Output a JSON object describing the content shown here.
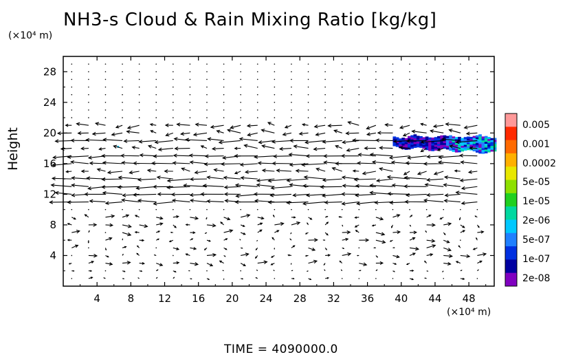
{
  "chart_data": {
    "type": "heatmap",
    "title": "NH3-s Cloud & Rain Mixing Ratio [kg/kg]",
    "ylabel": "Height",
    "xlabel": "",
    "x_unit": "(×10⁴ m)",
    "y_unit": "(×10⁴ m)",
    "xlim": [
      0,
      51
    ],
    "ylim": [
      0,
      30
    ],
    "x_ticks": [
      4,
      8,
      12,
      16,
      20,
      24,
      28,
      32,
      36,
      40,
      44,
      48
    ],
    "y_ticks": [
      4,
      8,
      12,
      16,
      20,
      24,
      28
    ],
    "colorbar": {
      "levels": [
        "0.005",
        "0.001",
        "0.0002",
        "5e-05",
        "1e-05",
        "2e-06",
        "5e-07",
        "1e-07",
        "2e-08"
      ],
      "colors": [
        "#ff9999",
        "#ff2a00",
        "#ff6a00",
        "#ffb000",
        "#e8e800",
        "#8ee000",
        "#20d020",
        "#00d8a0",
        "#00c8ff",
        "#2080ff",
        "#0030e0",
        "#0000a0",
        "#8000c0"
      ]
    },
    "cloud_region": {
      "x_range": [
        39,
        51
      ],
      "y_range": [
        17.5,
        19.5
      ],
      "dominant_levels": [
        "1e-07",
        "5e-07",
        "2e-06"
      ]
    },
    "wind_vectors": {
      "dominant_direction": "westward",
      "strong_layers_height": [
        11,
        12,
        13,
        14,
        16,
        17,
        19
      ]
    }
  },
  "footer": {
    "time_label": "TIME  =  4090000.0"
  }
}
